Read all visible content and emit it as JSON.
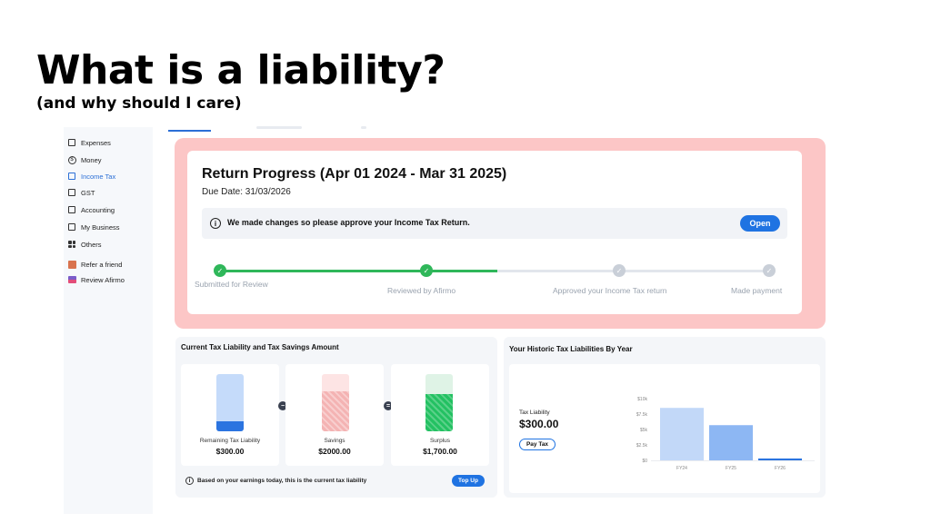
{
  "slide": {
    "title": "What is a liability?",
    "subtitle": "(and why should I care)"
  },
  "sidebar": {
    "items": [
      {
        "label": "Expenses",
        "icon": "receipt-icon"
      },
      {
        "label": "Money",
        "icon": "dollar-coin-icon"
      },
      {
        "label": "Income Tax",
        "icon": "tax-icon",
        "active": true
      },
      {
        "label": "GST",
        "icon": "document-icon"
      },
      {
        "label": "Accounting",
        "icon": "ledger-icon"
      },
      {
        "label": "My Business",
        "icon": "briefcase-icon"
      },
      {
        "label": "Others",
        "icon": "grid-icon"
      },
      {
        "label": "Refer a friend",
        "icon": "gift-icon"
      },
      {
        "label": "Review Afirmo",
        "icon": "review-icon"
      }
    ]
  },
  "return_progress": {
    "title": "Return Progress (Apr 01 2024 - Mar 31 2025)",
    "due_date": "Due Date: 31/03/2026",
    "notice": "We made changes so please approve your Income Tax Return.",
    "open_label": "Open",
    "steps": [
      {
        "label": "Submitted for Review",
        "done": true
      },
      {
        "label": "Reviewed by Afirmo",
        "done": true
      },
      {
        "label": "Approved your Income Tax return",
        "done": false
      },
      {
        "label": "Made payment",
        "done": false
      }
    ]
  },
  "liability": {
    "title": "Current Tax Liability and Tax Savings Amount",
    "cards": [
      {
        "label": "Remaining Tax Liability",
        "value": "$300.00",
        "fill_fraction": 0.17,
        "color": "#2b74e0",
        "bg": "#c5dbfa"
      },
      {
        "label": "Savings",
        "value": "$2000.00",
        "fill_fraction": 0.7,
        "color": "#f4b3b3",
        "bg": "#fde4e4"
      },
      {
        "label": "Surplus",
        "value": "$1,700.00",
        "fill_fraction": 0.65,
        "color": "#23c162",
        "bg": "#dff3e6"
      }
    ],
    "operators": [
      "−",
      "="
    ],
    "footer": "Based on your earnings today, this is the current tax liability",
    "topup_label": "Top Up"
  },
  "historic": {
    "title": "Your Historic Tax Liabilities By Year",
    "liability_label": "Tax Liability",
    "liability_value": "$300.00",
    "pay_label": "Pay Tax",
    "chart_data": {
      "type": "bar",
      "categories": [
        "FY24",
        "FY25",
        "FY26"
      ],
      "values": [
        8500,
        5700,
        300
      ],
      "yticks": [
        "$10k",
        "$7.5k",
        "$5k",
        "$2.5k",
        "$0"
      ],
      "ylim": [
        0,
        10000
      ],
      "colors": [
        "#c2d8f8",
        "#8db7f3",
        "#2b74e0"
      ]
    }
  }
}
